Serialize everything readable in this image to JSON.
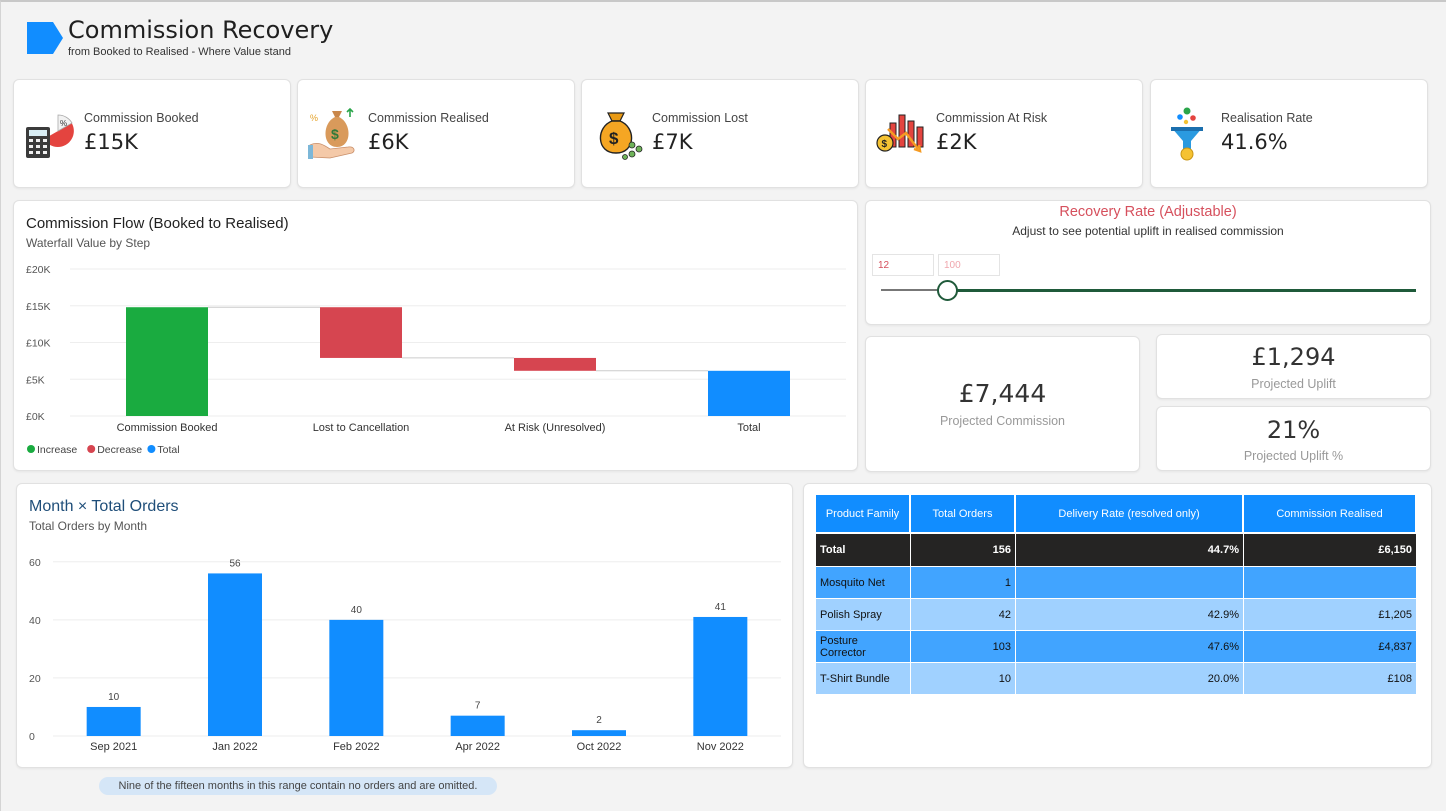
{
  "header": {
    "title": "Commission Recovery",
    "subtitle": "from Booked to Realised - Where Value stand"
  },
  "kpis": [
    {
      "label": "Commission Booked",
      "value": "£15K",
      "icon": "calculator-pie-icon"
    },
    {
      "label": "Commission Realised",
      "value": "£6K",
      "icon": "money-bag-hand-icon"
    },
    {
      "label": "Commission Lost",
      "value": "£7K",
      "icon": "money-bag-coins-icon"
    },
    {
      "label": "Commission At Risk",
      "value": "£2K",
      "icon": "declining-bars-icon"
    },
    {
      "label": "Realisation Rate",
      "value": "41.6%",
      "icon": "funnel-coin-icon"
    }
  ],
  "waterfall": {
    "title": "Commission Flow (Booked to Realised)",
    "subtitle": "Waterfall Value by Step",
    "legend": [
      {
        "label": "Increase",
        "color": "#1aab40"
      },
      {
        "label": "Decrease",
        "color": "#d64550"
      },
      {
        "label": "Total",
        "color": "#118dff"
      }
    ]
  },
  "recovery": {
    "title": "Recovery Rate (Adjustable)",
    "subtitle": "Adjust to see potential uplift in realised commission",
    "min_value": "12",
    "max_value": "100",
    "current": 12
  },
  "projections": {
    "commission_value": "£7,444",
    "commission_label": "Projected Commission",
    "uplift_value": "£1,294",
    "uplift_label": "Projected Uplift",
    "uplift_pct_value": "21%",
    "uplift_pct_label": "Projected Uplift %"
  },
  "table": {
    "headers": [
      "Product Family",
      "Total Orders",
      "Delivery Rate (resolved only)",
      "Commission Realised"
    ],
    "total": {
      "family": "Total",
      "orders": "156",
      "rate": "44.7%",
      "commission": "£6,150"
    },
    "rows": [
      {
        "family": "Mosquito Net",
        "orders": "1",
        "rate": "",
        "commission": ""
      },
      {
        "family": "Polish Spray",
        "orders": "42",
        "rate": "42.9%",
        "commission": "£1,205"
      },
      {
        "family": "Posture Corrector",
        "orders": "103",
        "rate": "47.6%",
        "commission": "£4,837"
      },
      {
        "family": "T-Shirt Bundle",
        "orders": "10",
        "rate": "20.0%",
        "commission": "£108"
      }
    ]
  },
  "monthly": {
    "title": "Month × Total Orders",
    "subtitle": "Total Orders by Month"
  },
  "footer": {
    "note": "Nine of the fifteen months in this range contain no orders and are omitted."
  },
  "chart_data": [
    {
      "type": "bar",
      "subtype": "waterfall",
      "title": "Commission Flow (Booked to Realised)",
      "subtitle": "Waterfall Value by Step",
      "categories": [
        "Commission Booked",
        "Lost to Cancellation",
        "At Risk (Unresolved)",
        "Total"
      ],
      "steps": [
        {
          "category": "Commission Booked",
          "kind": "Increase",
          "start": 0,
          "end": 14.8
        },
        {
          "category": "Lost to Cancellation",
          "kind": "Decrease",
          "start": 14.8,
          "end": 7.9
        },
        {
          "category": "At Risk (Unresolved)",
          "kind": "Decrease",
          "start": 7.9,
          "end": 6.15
        },
        {
          "category": "Total",
          "kind": "Total",
          "start": 0,
          "end": 6.15
        }
      ],
      "yticks": [
        0,
        5,
        10,
        15,
        20
      ],
      "ytick_labels": [
        "£0K",
        "£5K",
        "£10K",
        "£15K",
        "£20K"
      ],
      "ylim": [
        0,
        20
      ],
      "legend": [
        "Increase",
        "Decrease",
        "Total"
      ],
      "legend_position": "bottom-left",
      "grid": true
    },
    {
      "type": "bar",
      "title": "Month × Total Orders",
      "subtitle": "Total Orders by Month",
      "categories": [
        "Sep 2021",
        "Jan 2022",
        "Feb 2022",
        "Apr 2022",
        "Oct 2022",
        "Nov 2022"
      ],
      "values": [
        10,
        56,
        40,
        7,
        2,
        41
      ],
      "yticks": [
        0,
        20,
        40,
        60
      ],
      "ylim": [
        0,
        62
      ],
      "color": "#118dff",
      "grid": true
    }
  ]
}
